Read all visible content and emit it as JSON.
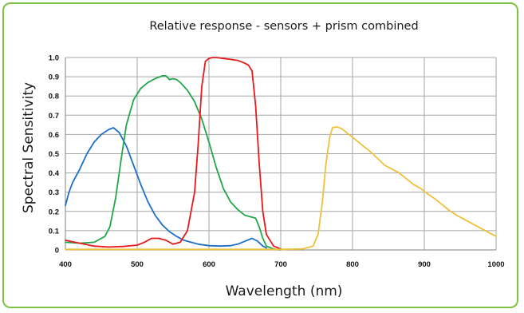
{
  "chart_data": {
    "type": "line",
    "title": "Relative response - sensors + prism combined",
    "xlabel": "Wavelength (nm)",
    "ylabel": "Spectral Sensitivity",
    "xlim": [
      400,
      1000
    ],
    "ylim": [
      0,
      1.0
    ],
    "x_ticks": [
      "400",
      "500",
      "600",
      "700",
      "800",
      "900",
      "1000"
    ],
    "y_ticks": [
      "0",
      "0.1",
      "0.2",
      "0.3",
      "0.4",
      "0.5",
      "0.6",
      "0.7",
      "0.8",
      "0.9",
      "1.0"
    ],
    "grid": true,
    "legend": "none",
    "series": [
      {
        "color": "#1f6fc5",
        "x": [
          400,
          405,
          410,
          420,
          430,
          440,
          450,
          460,
          467,
          475,
          485,
          495,
          505,
          515,
          525,
          535,
          545,
          555,
          565,
          575,
          585,
          600,
          615,
          630,
          640,
          650,
          660,
          668,
          675,
          680
        ],
        "y": [
          0.23,
          0.3,
          0.35,
          0.42,
          0.5,
          0.56,
          0.6,
          0.625,
          0.635,
          0.61,
          0.54,
          0.44,
          0.34,
          0.25,
          0.18,
          0.13,
          0.095,
          0.07,
          0.05,
          0.04,
          0.03,
          0.022,
          0.02,
          0.022,
          0.03,
          0.045,
          0.06,
          0.045,
          0.02,
          0.01
        ]
      },
      {
        "color": "#22a64b",
        "x": [
          400,
          420,
          440,
          455,
          462,
          470,
          478,
          485,
          495,
          505,
          515,
          525,
          535,
          540,
          545,
          550,
          555,
          560,
          570,
          580,
          590,
          600,
          610,
          620,
          630,
          640,
          650,
          660,
          665,
          670,
          675,
          680,
          690,
          700
        ],
        "y": [
          0.04,
          0.035,
          0.04,
          0.07,
          0.12,
          0.27,
          0.48,
          0.65,
          0.78,
          0.84,
          0.87,
          0.89,
          0.905,
          0.905,
          0.885,
          0.89,
          0.885,
          0.87,
          0.83,
          0.77,
          0.68,
          0.56,
          0.43,
          0.32,
          0.25,
          0.21,
          0.18,
          0.17,
          0.165,
          0.12,
          0.06,
          0.02,
          0.005,
          0.0
        ]
      },
      {
        "color": "#e8191c",
        "x": [
          400,
          420,
          440,
          460,
          480,
          500,
          510,
          520,
          530,
          540,
          545,
          550,
          560,
          570,
          580,
          585,
          590,
          595,
          600,
          605,
          610,
          620,
          630,
          640,
          650,
          655,
          660,
          665,
          670,
          675,
          680,
          690,
          700
        ],
        "y": [
          0.05,
          0.035,
          0.02,
          0.015,
          0.018,
          0.025,
          0.04,
          0.06,
          0.06,
          0.05,
          0.04,
          0.03,
          0.04,
          0.1,
          0.3,
          0.55,
          0.85,
          0.98,
          0.995,
          1.0,
          1.0,
          0.995,
          0.99,
          0.985,
          0.97,
          0.96,
          0.93,
          0.75,
          0.45,
          0.2,
          0.08,
          0.02,
          0.005
        ]
      },
      {
        "color": "#f0c03a",
        "x": [
          400,
          700,
          730,
          745,
          752,
          758,
          763,
          768,
          772,
          778,
          785,
          795,
          805,
          815,
          825,
          835,
          845,
          855,
          865,
          875,
          885,
          895,
          905,
          915,
          925,
          935,
          945,
          955,
          965,
          975,
          985,
          995,
          1000
        ],
        "y": [
          0.003,
          0.003,
          0.005,
          0.02,
          0.08,
          0.25,
          0.45,
          0.58,
          0.635,
          0.64,
          0.63,
          0.6,
          0.57,
          0.54,
          0.51,
          0.475,
          0.44,
          0.42,
          0.4,
          0.37,
          0.34,
          0.32,
          0.29,
          0.265,
          0.235,
          0.205,
          0.18,
          0.16,
          0.14,
          0.12,
          0.1,
          0.08,
          0.07
        ]
      }
    ]
  }
}
